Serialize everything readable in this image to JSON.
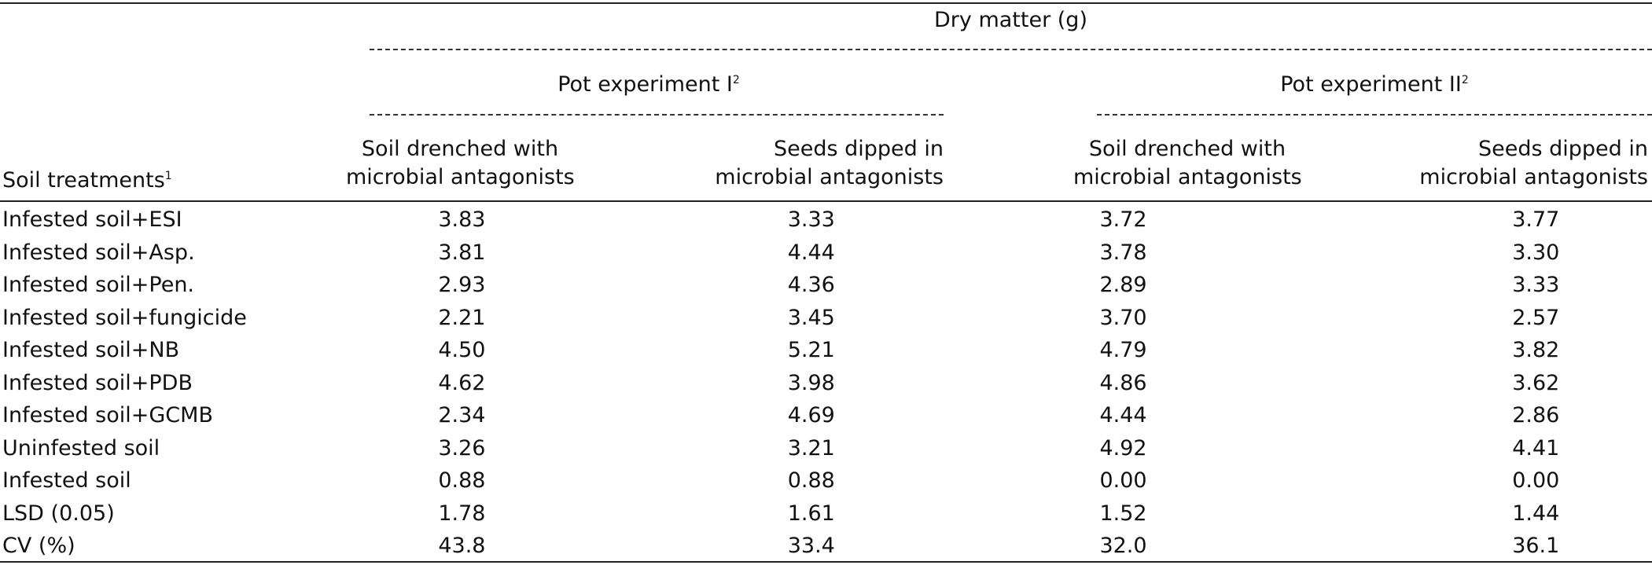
{
  "header": {
    "dry_matter": "Dry matter (g)",
    "pot1": "Pot experiment I",
    "pot1_sup": "2",
    "pot2": "Pot experiment II",
    "pot2_sup": "2",
    "col_soil_drenched_line1": "Soil drenched with",
    "col_soil_drenched_line2": "microbial antagonists",
    "col_seeds_dipped_line1": "Seeds dipped in",
    "col_seeds_dipped_line2": "microbial antagonists",
    "row_label": "Soil treatments",
    "row_label_sup": "1"
  },
  "rows": [
    {
      "label": "Infested soil+ESI",
      "v": [
        "3.83",
        "3.33",
        "3.72",
        "3.77"
      ]
    },
    {
      "label": "Infested soil+Asp.",
      "v": [
        "3.81",
        "4.44",
        "3.78",
        "3.30"
      ]
    },
    {
      "label": "Infested soil+Pen.",
      "v": [
        "2.93",
        "4.36",
        "2.89",
        "3.33"
      ]
    },
    {
      "label": "Infested soil+fungicide",
      "v": [
        "2.21",
        "3.45",
        "3.70",
        "2.57"
      ]
    },
    {
      "label": "Infested soil+NB",
      "v": [
        "4.50",
        "5.21",
        "4.79",
        "3.82"
      ]
    },
    {
      "label": "Infested soil+PDB",
      "v": [
        "4.62",
        "3.98",
        "4.86",
        "3.62"
      ]
    },
    {
      "label": "Infested soil+GCMB",
      "v": [
        "2.34",
        "4.69",
        "4.44",
        "2.86"
      ]
    },
    {
      "label": "Uninfested soil",
      "v": [
        "3.26",
        "3.21",
        "4.92",
        "4.41"
      ]
    },
    {
      "label": "Infested soil",
      "v": [
        "0.88",
        "0.88",
        "0.00",
        "0.00"
      ]
    },
    {
      "label": "LSD (0.05)",
      "v": [
        "1.78",
        "1.61",
        "1.52",
        "1.44"
      ]
    },
    {
      "label": "CV (%)",
      "v": [
        "43.8",
        "33.4",
        "32.0",
        "36.1"
      ]
    }
  ]
}
